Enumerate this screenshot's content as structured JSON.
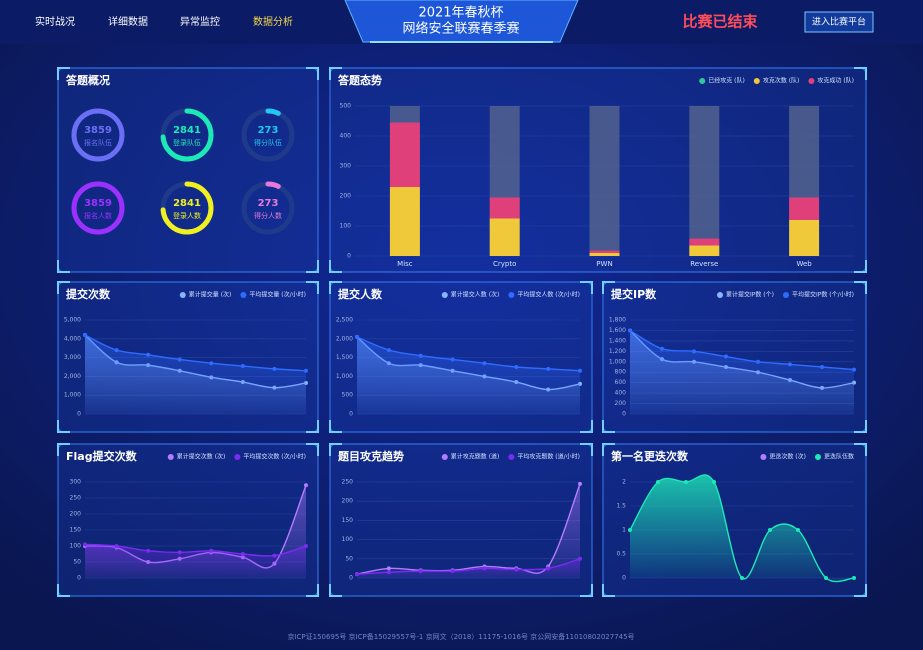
{
  "header": {
    "nav": [
      "实时战况",
      "详细数据",
      "异常监控",
      "数据分析"
    ],
    "title": [
      "2021年春秋杯",
      "网络安全联赛春季赛"
    ],
    "status": "比赛已结束",
    "button": "进入比赛平台"
  },
  "overview": {
    "title": "答题概况",
    "items": [
      {
        "value": 3859,
        "label": "报名队伍",
        "color": "#6b6ff5"
      },
      {
        "value": 2841,
        "label": "登录队伍",
        "color": "#1de9b6"
      },
      {
        "value": 273,
        "label": "得分队伍",
        "color": "#22c8f0"
      },
      {
        "value": 3859,
        "label": "报名人数",
        "color": "#9b30ff"
      },
      {
        "value": 2841,
        "label": "登录人数",
        "color": "#f0f020"
      },
      {
        "value": 273,
        "label": "得分人数",
        "color": "#e879d9"
      }
    ]
  },
  "chart_data": [
    {
      "type": "bar",
      "title": "答题态势",
      "categories": [
        "Misc",
        "Crypto",
        "PWN",
        "Reverse",
        "Web"
      ],
      "ylim": [
        0,
        500
      ],
      "yticks": [
        0,
        100,
        200,
        300,
        400,
        500
      ],
      "series": [
        {
          "name": "已经攻克 (队)",
          "color": "#2ec7a0",
          "values": [
            null,
            null,
            null,
            null,
            null
          ]
        },
        {
          "name": "攻克次数 (队)",
          "color": "#f0c93a",
          "values": [
            230,
            125,
            10,
            35,
            120
          ]
        },
        {
          "name": "攻克成功 (队)",
          "color": "#e0407a",
          "values": [
            215,
            70,
            8,
            23,
            75
          ]
        }
      ]
    },
    {
      "type": "line",
      "title": "提交次数",
      "ylim": [
        0,
        5000
      ],
      "yticks": [
        0,
        {
          "value": 1000,
          "label": "1,000"
        },
        {
          "value": 2000,
          "label": "2,000"
        },
        {
          "value": 3000,
          "label": "3,000"
        },
        {
          "value": 4000,
          "label": "4,000"
        },
        {
          "value": 5000,
          "label": "5,000"
        }
      ],
      "series": [
        {
          "name": "累计提交量 (次)",
          "color": "#8ab4ff",
          "values": [
            4200,
            2750,
            2600,
            2300,
            1950,
            1700,
            1400,
            1650
          ]
        },
        {
          "name": "平均提交量 (次/小时)",
          "color": "#2f6bff",
          "values": [
            4200,
            3400,
            3150,
            2900,
            2700,
            2550,
            2400,
            2300
          ]
        }
      ]
    },
    {
      "type": "line",
      "title": "提交人数",
      "ylim": [
        0,
        2500
      ],
      "yticks": [
        0,
        500,
        {
          "value": 1000,
          "label": "1,000"
        },
        {
          "value": 1500,
          "label": "1,500"
        },
        {
          "value": 2000,
          "label": "2,000"
        },
        {
          "value": 2500,
          "label": "2,500"
        }
      ],
      "series": [
        {
          "name": "累计提交人数 (次)",
          "color": "#8ab4ff",
          "values": [
            2050,
            1350,
            1300,
            1150,
            1000,
            850,
            650,
            800
          ]
        },
        {
          "name": "平均提交人数 (次/小时)",
          "color": "#2f6bff",
          "values": [
            2050,
            1700,
            1550,
            1450,
            1350,
            1250,
            1200,
            1150
          ]
        }
      ]
    },
    {
      "type": "line",
      "title": "提交IP数",
      "ylim": [
        0,
        1800
      ],
      "yticks": [
        0,
        200,
        400,
        600,
        800,
        {
          "value": 1000,
          "label": "1,000"
        },
        {
          "value": 1200,
          "label": "1,200"
        },
        {
          "value": 1400,
          "label": "1,400"
        },
        {
          "value": 1600,
          "label": "1,600"
        },
        {
          "value": 1800,
          "label": "1,800"
        }
      ],
      "series": [
        {
          "name": "累计提交IP数 (个)",
          "color": "#8ab4ff",
          "values": [
            1600,
            1050,
            1000,
            900,
            800,
            650,
            500,
            600
          ]
        },
        {
          "name": "平均提交IP数 (个/小时)",
          "color": "#2f6bff",
          "values": [
            1600,
            1250,
            1200,
            1100,
            1000,
            950,
            900,
            850
          ]
        }
      ]
    },
    {
      "type": "line",
      "title": "Flag提交次数",
      "ylim": [
        0,
        300
      ],
      "yticks": [
        0,
        50,
        100,
        150,
        200,
        250,
        300
      ],
      "series": [
        {
          "name": "累计提交次数 (次)",
          "color": "#b57cff",
          "values": [
            100,
            95,
            50,
            60,
            80,
            65,
            45,
            290
          ]
        },
        {
          "name": "平均提交次数 (次/小时)",
          "color": "#7a2cf0",
          "values": [
            105,
            100,
            85,
            80,
            85,
            75,
            70,
            100
          ]
        }
      ]
    },
    {
      "type": "line",
      "title": "题目攻克趋势",
      "ylim": [
        0,
        250
      ],
      "yticks": [
        0,
        50,
        100,
        150,
        200,
        250
      ],
      "series": [
        {
          "name": "累计攻克题数 (道)",
          "color": "#b57cff",
          "values": [
            10,
            25,
            20,
            20,
            30,
            25,
            30,
            245
          ]
        },
        {
          "name": "平均攻克题数 (道/小时)",
          "color": "#7a2cf0",
          "values": [
            10,
            15,
            18,
            18,
            25,
            22,
            25,
            50
          ]
        }
      ]
    },
    {
      "type": "line",
      "title": "第一名更迭次数",
      "ylim": [
        0,
        2
      ],
      "yticks": [
        0,
        0.5,
        1,
        1.5,
        2
      ],
      "series": [
        {
          "name": "更迭次数 (次)",
          "color": "#b57cff",
          "values": [
            null,
            null,
            null,
            null,
            null,
            null,
            null,
            null,
            null
          ]
        },
        {
          "name": "更迭队伍数",
          "color": "#1de9b6",
          "values": [
            1,
            2,
            2,
            2,
            0,
            1,
            1,
            0,
            0
          ]
        }
      ]
    }
  ],
  "footer": "京ICP证150695号 京ICP备15029557号-1 京网文（2018）11175-1016号 京公网安备11010802027745号"
}
